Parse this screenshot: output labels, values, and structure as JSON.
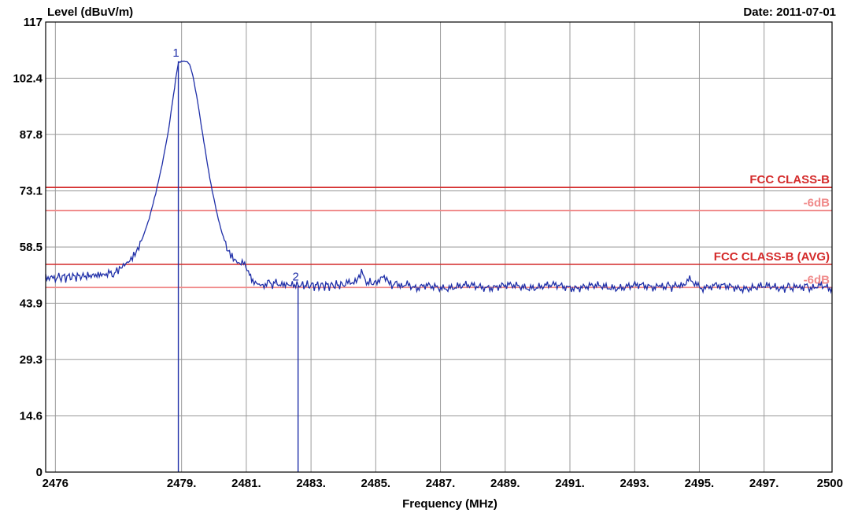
{
  "header": {
    "date": "Date: 2011-07-01"
  },
  "chart_data": {
    "type": "line",
    "title": "",
    "ylabel": "Level (dBuV/m)",
    "xlabel": "Frequency (MHz)",
    "xlim": [
      2475.7,
      2500
    ],
    "ylim": [
      0,
      117
    ],
    "grid": true,
    "y_ticks": [
      {
        "value": 0,
        "label": "0"
      },
      {
        "value": 14.6,
        "label": "14.6"
      },
      {
        "value": 29.3,
        "label": "29.3"
      },
      {
        "value": 43.9,
        "label": "43.9"
      },
      {
        "value": 58.5,
        "label": "58.5"
      },
      {
        "value": 73.1,
        "label": "73.1"
      },
      {
        "value": 87.8,
        "label": "87.8"
      },
      {
        "value": 102.4,
        "label": "102.4"
      },
      {
        "value": 117,
        "label": "117"
      }
    ],
    "x_ticks": [
      {
        "value": 2476,
        "label": "2476"
      },
      {
        "value": 2479.9,
        "label": "2479."
      },
      {
        "value": 2481.9,
        "label": "2481."
      },
      {
        "value": 2483.9,
        "label": "2483."
      },
      {
        "value": 2485.9,
        "label": "2485."
      },
      {
        "value": 2487.9,
        "label": "2487."
      },
      {
        "value": 2489.9,
        "label": "2489."
      },
      {
        "value": 2491.9,
        "label": "2491."
      },
      {
        "value": 2493.9,
        "label": "2493."
      },
      {
        "value": 2495.9,
        "label": "2495."
      },
      {
        "value": 2497.9,
        "label": "2497."
      },
      {
        "value": 2500,
        "label": "2500"
      }
    ],
    "limits": [
      {
        "name": "FCC CLASS-B",
        "value": 74,
        "color": "#d42a2a"
      },
      {
        "name": "-6dB",
        "value": 68,
        "color": "#f08a8a"
      },
      {
        "name": "FCC CLASS-B (AVG)",
        "value": 54,
        "color": "#d42a2a"
      },
      {
        "name": "-6dB",
        "value": 48,
        "color": "#f08a8a"
      }
    ],
    "markers": [
      {
        "label": "1",
        "x": 2479.8,
        "y": 106.8
      },
      {
        "label": "2",
        "x": 2483.5,
        "y": 48.6
      }
    ],
    "series": [
      {
        "color": "#1f2fa8",
        "points": [
          [
            2475.7,
            51.2
          ],
          [
            2476.0,
            50.6
          ],
          [
            2476.5,
            50.8
          ],
          [
            2477.0,
            51.0
          ],
          [
            2477.5,
            51.4
          ],
          [
            2477.9,
            51.8
          ],
          [
            2478.1,
            53.5
          ],
          [
            2478.3,
            55.0
          ],
          [
            2478.5,
            57.5
          ],
          [
            2478.7,
            61.0
          ],
          [
            2478.9,
            66.0
          ],
          [
            2479.1,
            72.5
          ],
          [
            2479.3,
            80.0
          ],
          [
            2479.5,
            89.0
          ],
          [
            2479.65,
            98.0
          ],
          [
            2479.75,
            104.0
          ],
          [
            2479.8,
            106.4
          ],
          [
            2479.9,
            106.8
          ],
          [
            2480.05,
            106.8
          ],
          [
            2480.15,
            106.0
          ],
          [
            2480.25,
            103.0
          ],
          [
            2480.4,
            96.0
          ],
          [
            2480.55,
            88.0
          ],
          [
            2480.7,
            80.0
          ],
          [
            2480.85,
            73.0
          ],
          [
            2481.0,
            67.0
          ],
          [
            2481.15,
            62.0
          ],
          [
            2481.3,
            58.5
          ],
          [
            2481.5,
            56.0
          ],
          [
            2481.7,
            54.5
          ],
          [
            2481.85,
            53.5
          ],
          [
            2482.0,
            51.5
          ],
          [
            2482.1,
            49.5
          ],
          [
            2482.3,
            48.6
          ],
          [
            2482.6,
            49.2
          ],
          [
            2483.0,
            48.8
          ],
          [
            2483.5,
            48.6
          ],
          [
            2484.0,
            48.5
          ],
          [
            2484.5,
            48.5
          ],
          [
            2485.0,
            48.8
          ],
          [
            2485.3,
            49.2
          ],
          [
            2485.5,
            51.8
          ],
          [
            2485.65,
            49.4
          ],
          [
            2485.9,
            49.0
          ],
          [
            2486.2,
            50.8
          ],
          [
            2486.4,
            49.0
          ],
          [
            2486.8,
            48.4
          ],
          [
            2487.5,
            48.1
          ],
          [
            2488.5,
            48.2
          ],
          [
            2489.5,
            48.3
          ],
          [
            2490.5,
            48.2
          ],
          [
            2491.5,
            48.3
          ],
          [
            2492.5,
            48.1
          ],
          [
            2493.5,
            48.2
          ],
          [
            2494.5,
            48.3
          ],
          [
            2495.3,
            48.4
          ],
          [
            2495.6,
            49.6
          ],
          [
            2495.9,
            48.3
          ],
          [
            2496.5,
            48.1
          ],
          [
            2497.5,
            48.0
          ],
          [
            2498.5,
            48.0
          ],
          [
            2499.3,
            48.2
          ],
          [
            2500.0,
            48.1
          ]
        ]
      }
    ]
  }
}
